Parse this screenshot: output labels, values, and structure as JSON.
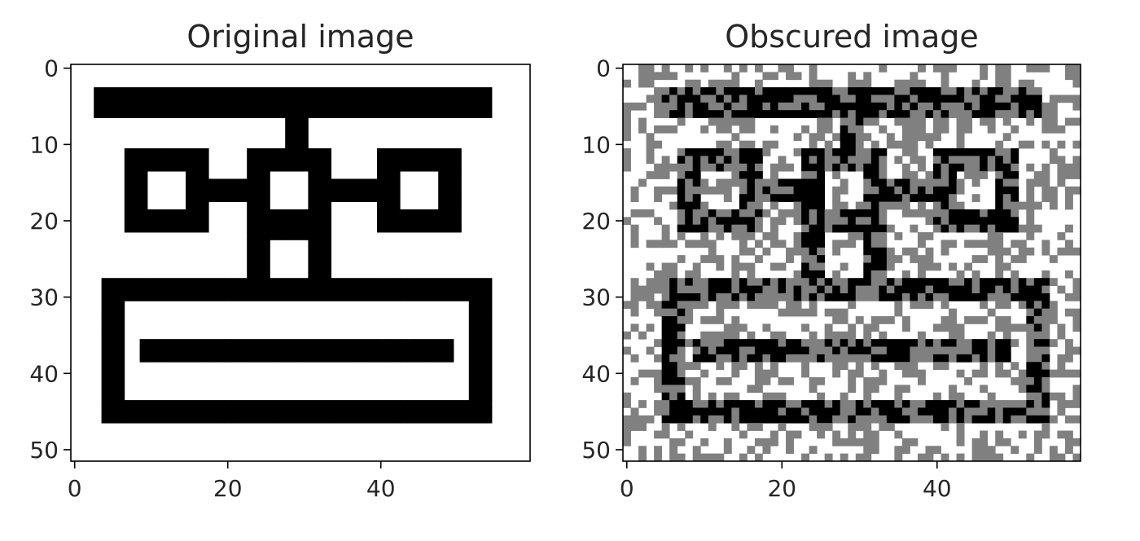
{
  "chart_data": [
    {
      "type": "heatmap",
      "title": "Original image",
      "xlim": [
        -0.5,
        59.5
      ],
      "ylim": [
        51.5,
        -0.5
      ],
      "xticks": [
        0,
        20,
        40
      ],
      "yticks": [
        0,
        10,
        20,
        30,
        40,
        50
      ],
      "grid": false,
      "legend": "none",
      "colors": {
        "on": "#000000",
        "off": "#ffffff"
      },
      "shapes": [
        {
          "kind": "bar",
          "x": [
            3,
            55
          ],
          "y": [
            3,
            7
          ]
        },
        {
          "kind": "bar",
          "x": [
            28,
            31
          ],
          "y": [
            7,
            11
          ]
        },
        {
          "kind": "box",
          "x": [
            7,
            18
          ],
          "y": [
            11,
            22
          ],
          "thickness": 3
        },
        {
          "kind": "box",
          "x": [
            23,
            34
          ],
          "y": [
            11,
            22
          ],
          "thickness": 3
        },
        {
          "kind": "box",
          "x": [
            40,
            51
          ],
          "y": [
            11,
            22
          ],
          "thickness": 3
        },
        {
          "kind": "bar",
          "x": [
            18,
            23
          ],
          "y": [
            15,
            18
          ]
        },
        {
          "kind": "bar",
          "x": [
            34,
            40
          ],
          "y": [
            15,
            18
          ]
        },
        {
          "kind": "bar",
          "x": [
            23,
            26
          ],
          "y": [
            22,
            28
          ]
        },
        {
          "kind": "bar",
          "x": [
            31,
            34
          ],
          "y": [
            22,
            28
          ]
        },
        {
          "kind": "bar",
          "x": [
            26,
            31
          ],
          "y": [
            22,
            23
          ]
        },
        {
          "kind": "box",
          "x": [
            4,
            55
          ],
          "y": [
            28,
            47
          ],
          "thickness": 3
        },
        {
          "kind": "bar",
          "x": [
            9,
            50
          ],
          "y": [
            36,
            39
          ]
        }
      ]
    },
    {
      "type": "heatmap",
      "title": "Obscured image",
      "xlim": [
        -0.5,
        58.5
      ],
      "ylim": [
        51.5,
        -0.5
      ],
      "xticks": [
        0,
        20,
        40
      ],
      "yticks": [
        0,
        10,
        20,
        30,
        40,
        50
      ],
      "grid": false,
      "legend": "none",
      "colors": {
        "on": "#000000",
        "off": "#ffffff",
        "hidden": "#808080"
      },
      "hidden_fraction": 0.4,
      "shapes": [
        {
          "kind": "bar",
          "x": [
            4,
            54
          ],
          "y": [
            3,
            7
          ]
        },
        {
          "kind": "bar",
          "x": [
            28,
            31
          ],
          "y": [
            7,
            11
          ]
        },
        {
          "kind": "box",
          "x": [
            7,
            18
          ],
          "y": [
            11,
            22
          ],
          "thickness": 3
        },
        {
          "kind": "box",
          "x": [
            23,
            34
          ],
          "y": [
            11,
            22
          ],
          "thickness": 3
        },
        {
          "kind": "box",
          "x": [
            40,
            51
          ],
          "y": [
            11,
            22
          ],
          "thickness": 3
        },
        {
          "kind": "bar",
          "x": [
            18,
            23
          ],
          "y": [
            15,
            18
          ]
        },
        {
          "kind": "bar",
          "x": [
            34,
            40
          ],
          "y": [
            15,
            18
          ]
        },
        {
          "kind": "bar",
          "x": [
            23,
            26
          ],
          "y": [
            22,
            28
          ]
        },
        {
          "kind": "bar",
          "x": [
            31,
            34
          ],
          "y": [
            22,
            28
          ]
        },
        {
          "kind": "box",
          "x": [
            5,
            55
          ],
          "y": [
            28,
            47
          ],
          "thickness": 3
        },
        {
          "kind": "bar",
          "x": [
            9,
            50
          ],
          "y": [
            36,
            39
          ]
        }
      ]
    }
  ]
}
